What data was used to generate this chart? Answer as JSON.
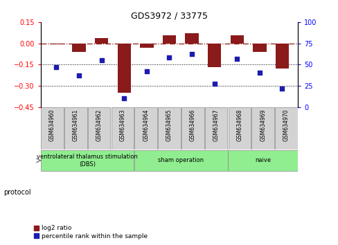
{
  "title": "GDS3972 / 33775",
  "samples": [
    "GSM634960",
    "GSM634961",
    "GSM634962",
    "GSM634963",
    "GSM634964",
    "GSM634965",
    "GSM634966",
    "GSM634967",
    "GSM634968",
    "GSM634969",
    "GSM634970"
  ],
  "log2_ratio": [
    -0.005,
    -0.06,
    0.035,
    -0.35,
    -0.03,
    0.055,
    0.07,
    -0.17,
    0.055,
    -0.06,
    -0.18
  ],
  "percentile_rank": [
    47,
    37,
    55,
    10,
    42,
    58,
    62,
    27,
    57,
    40,
    22
  ],
  "groups": [
    {
      "label": "ventrolateral thalamus stimulation\n(DBS)",
      "start": 0,
      "end": 3,
      "color": "#90EE90"
    },
    {
      "label": "sham operation",
      "start": 4,
      "end": 7,
      "color": "#90EE90"
    },
    {
      "label": "naive",
      "start": 8,
      "end": 10,
      "color": "#90EE90"
    }
  ],
  "bar_color": "#8B1A1A",
  "dot_color": "#1C1CB0",
  "ylim_left": [
    -0.45,
    0.15
  ],
  "ylim_right": [
    0,
    100
  ],
  "yticks_left": [
    0.15,
    0.0,
    -0.15,
    -0.3,
    -0.45
  ],
  "yticks_right": [
    100,
    75,
    50,
    25,
    0
  ],
  "hline_y": 0.0,
  "dotted_lines": [
    -0.15,
    -0.3
  ],
  "background_color": "#ffffff",
  "sample_bg_color": "#d3d3d3"
}
